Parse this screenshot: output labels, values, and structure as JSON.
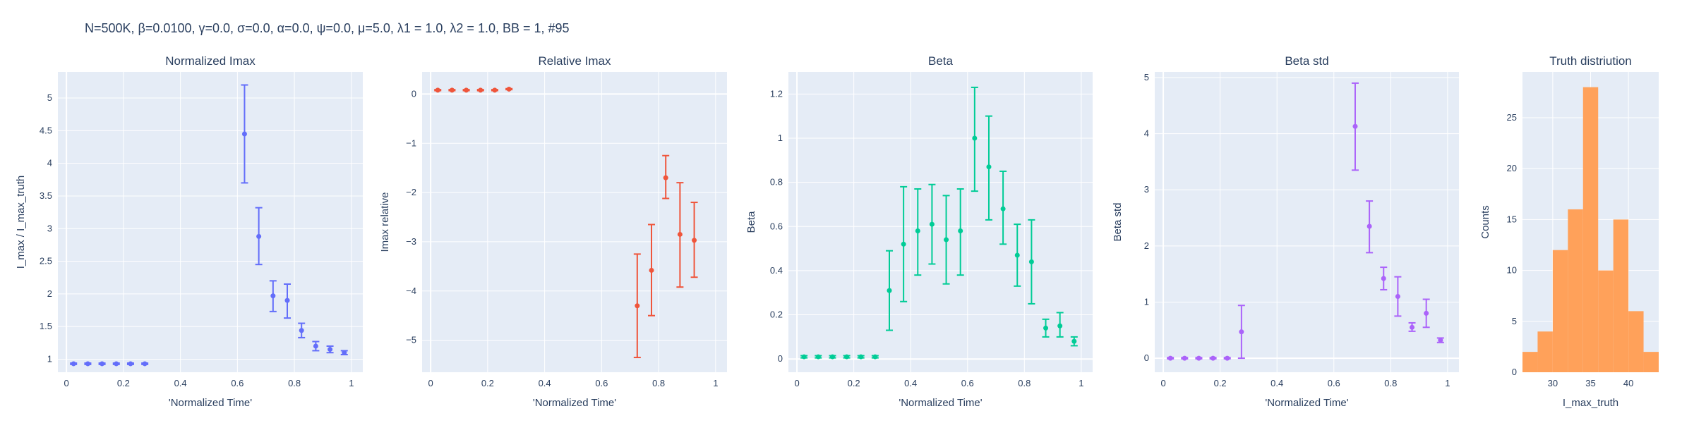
{
  "suptitle": "N=500K, β=0.0100, γ=0.0, σ=0.0,  α=0.0, ψ=0.0, μ=5.0, λ1 = 1.0, λ2 = 1.0, BB = 1, #95",
  "colors": {
    "plot_bg": "#e5ecf6",
    "grid": "#ffffff",
    "text": "#2a3f5f"
  },
  "chart_data": [
    {
      "type": "scatter",
      "error_bars": true,
      "title": "Normalized Imax",
      "xlabel": "'Normalized Time'",
      "ylabel": "I_max / I_max_truth",
      "color": "#636efa",
      "xlim": [
        -0.03,
        1.04
      ],
      "ylim": [
        0.8,
        5.4
      ],
      "xticks": [
        0,
        0.2,
        0.4,
        0.6,
        0.8,
        1
      ],
      "xtick_labels": [
        "0",
        "0.2",
        "0.4",
        "0.6",
        "0.8",
        "1"
      ],
      "yticks": [
        1,
        1.5,
        2,
        2.5,
        3,
        3.5,
        4,
        4.5,
        5
      ],
      "ytick_labels": [
        "1",
        "1.5",
        "2",
        "2.5",
        "3",
        "3.5",
        "4",
        "4.5",
        "5"
      ],
      "points": [
        {
          "x": 0.025,
          "y": 0.93,
          "lo": 0.92,
          "hi": 0.94
        },
        {
          "x": 0.075,
          "y": 0.93,
          "lo": 0.92,
          "hi": 0.94
        },
        {
          "x": 0.125,
          "y": 0.93,
          "lo": 0.92,
          "hi": 0.94
        },
        {
          "x": 0.175,
          "y": 0.93,
          "lo": 0.92,
          "hi": 0.94
        },
        {
          "x": 0.225,
          "y": 0.93,
          "lo": 0.92,
          "hi": 0.94
        },
        {
          "x": 0.275,
          "y": 0.93,
          "lo": 0.92,
          "hi": 0.94
        },
        {
          "x": 0.625,
          "y": 4.45,
          "lo": 3.7,
          "hi": 5.2
        },
        {
          "x": 0.675,
          "y": 2.88,
          "lo": 2.45,
          "hi": 3.32
        },
        {
          "x": 0.725,
          "y": 1.97,
          "lo": 1.73,
          "hi": 2.2
        },
        {
          "x": 0.775,
          "y": 1.9,
          "lo": 1.63,
          "hi": 2.15
        },
        {
          "x": 0.825,
          "y": 1.44,
          "lo": 1.33,
          "hi": 1.55
        },
        {
          "x": 0.875,
          "y": 1.2,
          "lo": 1.13,
          "hi": 1.27
        },
        {
          "x": 0.925,
          "y": 1.15,
          "lo": 1.1,
          "hi": 1.2
        },
        {
          "x": 0.975,
          "y": 1.1,
          "lo": 1.07,
          "hi": 1.13
        }
      ]
    },
    {
      "type": "scatter",
      "error_bars": true,
      "title": "Relative Imax",
      "xlabel": "'Normalized Time'",
      "ylabel": "Imax relative",
      "color": "#ef553b",
      "xlim": [
        -0.03,
        1.04
      ],
      "ylim": [
        -5.65,
        0.45
      ],
      "xticks": [
        0,
        0.2,
        0.4,
        0.6,
        0.8,
        1
      ],
      "xtick_labels": [
        "0",
        "0.2",
        "0.4",
        "0.6",
        "0.8",
        "1"
      ],
      "yticks": [
        -5,
        -4,
        -3,
        -2,
        -1,
        0
      ],
      "ytick_labels": [
        "−5",
        "−4",
        "−3",
        "−2",
        "−1",
        "0"
      ],
      "points": [
        {
          "x": 0.025,
          "y": 0.08,
          "lo": 0.07,
          "hi": 0.09
        },
        {
          "x": 0.075,
          "y": 0.08,
          "lo": 0.07,
          "hi": 0.09
        },
        {
          "x": 0.125,
          "y": 0.08,
          "lo": 0.07,
          "hi": 0.09
        },
        {
          "x": 0.175,
          "y": 0.08,
          "lo": 0.07,
          "hi": 0.09
        },
        {
          "x": 0.225,
          "y": 0.08,
          "lo": 0.07,
          "hi": 0.09
        },
        {
          "x": 0.275,
          "y": 0.1,
          "lo": 0.09,
          "hi": 0.11
        },
        {
          "x": 0.725,
          "y": -4.3,
          "lo": -5.35,
          "hi": -3.25
        },
        {
          "x": 0.775,
          "y": -3.58,
          "lo": -4.5,
          "hi": -2.65
        },
        {
          "x": 0.825,
          "y": -1.7,
          "lo": -2.12,
          "hi": -1.25
        },
        {
          "x": 0.875,
          "y": -2.85,
          "lo": -3.92,
          "hi": -1.8
        },
        {
          "x": 0.925,
          "y": -2.97,
          "lo": -3.72,
          "hi": -2.2
        }
      ]
    },
    {
      "type": "scatter",
      "error_bars": true,
      "title": "Beta",
      "xlabel": "'Normalized Time'",
      "ylabel": "Beta",
      "color": "#00cc96",
      "xlim": [
        -0.03,
        1.04
      ],
      "ylim": [
        -0.06,
        1.3
      ],
      "xticks": [
        0,
        0.2,
        0.4,
        0.6,
        0.8,
        1
      ],
      "xtick_labels": [
        "0",
        "0.2",
        "0.4",
        "0.6",
        "0.8",
        "1"
      ],
      "yticks": [
        0,
        0.2,
        0.4,
        0.6,
        0.8,
        1,
        1.2
      ],
      "ytick_labels": [
        "0",
        "0.2",
        "0.4",
        "0.6",
        "0.8",
        "1",
        "1.2"
      ],
      "points": [
        {
          "x": 0.025,
          "y": 0.01,
          "lo": 0.005,
          "hi": 0.015
        },
        {
          "x": 0.075,
          "y": 0.01,
          "lo": 0.005,
          "hi": 0.015
        },
        {
          "x": 0.125,
          "y": 0.01,
          "lo": 0.005,
          "hi": 0.015
        },
        {
          "x": 0.175,
          "y": 0.01,
          "lo": 0.005,
          "hi": 0.015
        },
        {
          "x": 0.225,
          "y": 0.01,
          "lo": 0.005,
          "hi": 0.015
        },
        {
          "x": 0.275,
          "y": 0.01,
          "lo": 0.005,
          "hi": 0.015
        },
        {
          "x": 0.325,
          "y": 0.31,
          "lo": 0.13,
          "hi": 0.49
        },
        {
          "x": 0.375,
          "y": 0.52,
          "lo": 0.26,
          "hi": 0.78
        },
        {
          "x": 0.425,
          "y": 0.58,
          "lo": 0.38,
          "hi": 0.77
        },
        {
          "x": 0.475,
          "y": 0.61,
          "lo": 0.43,
          "hi": 0.79
        },
        {
          "x": 0.525,
          "y": 0.54,
          "lo": 0.34,
          "hi": 0.74
        },
        {
          "x": 0.575,
          "y": 0.58,
          "lo": 0.38,
          "hi": 0.77
        },
        {
          "x": 0.625,
          "y": 1.0,
          "lo": 0.76,
          "hi": 1.23
        },
        {
          "x": 0.675,
          "y": 0.87,
          "lo": 0.63,
          "hi": 1.1
        },
        {
          "x": 0.725,
          "y": 0.68,
          "lo": 0.52,
          "hi": 0.85
        },
        {
          "x": 0.775,
          "y": 0.47,
          "lo": 0.33,
          "hi": 0.61
        },
        {
          "x": 0.825,
          "y": 0.44,
          "lo": 0.25,
          "hi": 0.63
        },
        {
          "x": 0.875,
          "y": 0.14,
          "lo": 0.1,
          "hi": 0.18
        },
        {
          "x": 0.925,
          "y": 0.15,
          "lo": 0.1,
          "hi": 0.21
        },
        {
          "x": 0.975,
          "y": 0.08,
          "lo": 0.06,
          "hi": 0.1
        }
      ]
    },
    {
      "type": "scatter",
      "error_bars": true,
      "title": "Beta std",
      "xlabel": "'Normalized Time'",
      "ylabel": "Beta std",
      "color": "#ab63fa",
      "xlim": [
        -0.03,
        1.04
      ],
      "ylim": [
        -0.25,
        5.1
      ],
      "xticks": [
        0,
        0.2,
        0.4,
        0.6,
        0.8,
        1
      ],
      "xtick_labels": [
        "0",
        "0.2",
        "0.4",
        "0.6",
        "0.8",
        "1"
      ],
      "yticks": [
        0,
        1,
        2,
        3,
        4,
        5
      ],
      "ytick_labels": [
        "0",
        "1",
        "2",
        "3",
        "4",
        "5"
      ],
      "points": [
        {
          "x": 0.025,
          "y": 0.0,
          "lo": -0.01,
          "hi": 0.01
        },
        {
          "x": 0.075,
          "y": 0.0,
          "lo": -0.01,
          "hi": 0.01
        },
        {
          "x": 0.125,
          "y": 0.0,
          "lo": -0.01,
          "hi": 0.01
        },
        {
          "x": 0.175,
          "y": 0.0,
          "lo": -0.01,
          "hi": 0.01
        },
        {
          "x": 0.225,
          "y": 0.0,
          "lo": -0.01,
          "hi": 0.01
        },
        {
          "x": 0.275,
          "y": 0.47,
          "lo": 0.0,
          "hi": 0.94
        },
        {
          "x": 0.675,
          "y": 4.13,
          "lo": 3.35,
          "hi": 4.9
        },
        {
          "x": 0.725,
          "y": 2.35,
          "lo": 1.88,
          "hi": 2.8
        },
        {
          "x": 0.775,
          "y": 1.42,
          "lo": 1.22,
          "hi": 1.62
        },
        {
          "x": 0.825,
          "y": 1.1,
          "lo": 0.75,
          "hi": 1.45
        },
        {
          "x": 0.875,
          "y": 0.55,
          "lo": 0.48,
          "hi": 0.63
        },
        {
          "x": 0.925,
          "y": 0.8,
          "lo": 0.55,
          "hi": 1.05
        },
        {
          "x": 0.975,
          "y": 0.32,
          "lo": 0.28,
          "hi": 0.36
        }
      ]
    },
    {
      "type": "bar",
      "histogram": true,
      "title": "Truth distriution",
      "xlabel": "I_max_truth",
      "ylabel": "Counts",
      "color": "#ffa15a",
      "xlim": [
        26,
        44
      ],
      "ylim": [
        0,
        29.5
      ],
      "bin_width": 2,
      "bin_starts": [
        26,
        28,
        30,
        32,
        34,
        36,
        38,
        40,
        42
      ],
      "values": [
        2,
        4,
        12,
        16,
        28,
        10,
        15,
        6,
        2
      ],
      "xticks": [
        30,
        35,
        40
      ],
      "xtick_labels": [
        "30",
        "35",
        "40"
      ],
      "yticks": [
        0,
        5,
        10,
        15,
        20,
        25
      ],
      "ytick_labels": [
        "0",
        "5",
        "10",
        "15",
        "20",
        "25"
      ]
    }
  ]
}
